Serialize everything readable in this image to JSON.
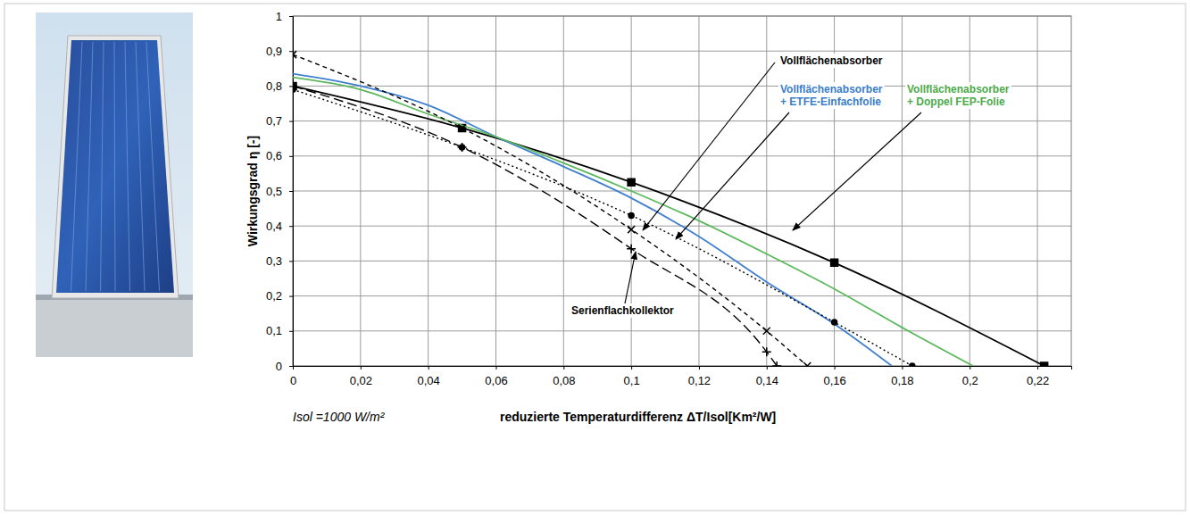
{
  "chart_data": {
    "type": "line",
    "y_label": "Wirkungsgrad η [-]",
    "x_label": "reduzierte Temperaturdifferenz ΔT/Isol[Km²/W]",
    "note": "Isol =1000 W/m²",
    "xlim": [
      0,
      0.23
    ],
    "ylim": [
      0,
      1
    ],
    "xticks": [
      0,
      {
        "value": 0.02,
        "label": "0,02"
      },
      {
        "value": 0.04,
        "label": "0,04"
      },
      {
        "value": 0.06,
        "label": "0,06"
      },
      {
        "value": 0.08,
        "label": "0,08"
      },
      {
        "value": 0.1,
        "label": "0,1"
      },
      {
        "value": 0.12,
        "label": "0,12"
      },
      {
        "value": 0.14,
        "label": "0,14"
      },
      {
        "value": 0.16,
        "label": "0,16"
      },
      {
        "value": 0.18,
        "label": "0,18"
      },
      {
        "value": 0.2,
        "label": "0,2"
      },
      {
        "value": 0.22,
        "label": "0,22"
      }
    ],
    "yticks": [
      0,
      {
        "value": 0.1,
        "label": "0,1"
      },
      {
        "value": 0.2,
        "label": "0,2"
      },
      {
        "value": 0.3,
        "label": "0,3"
      },
      {
        "value": 0.4,
        "label": "0,4"
      },
      {
        "value": 0.5,
        "label": "0,5"
      },
      {
        "value": 0.6,
        "label": "0,6"
      },
      {
        "value": 0.7,
        "label": "0,7"
      },
      {
        "value": 0.8,
        "label": "0,8"
      },
      {
        "value": 0.9,
        "label": "0,9"
      },
      1
    ],
    "grid": true,
    "series": [
      {
        "color": "#000000",
        "line_style": "solid",
        "marker": "square",
        "x": [
          0,
          0.05,
          0.1,
          0.16,
          0.222
        ],
        "values": [
          0.8,
          0.68,
          0.525,
          0.295,
          0
        ]
      },
      {
        "color": "#3f7fd0",
        "line_style": "solid",
        "marker": "none",
        "x": [
          0,
          0.02,
          0.04,
          0.06,
          0.08,
          0.1,
          0.12,
          0.14,
          0.16,
          0.177
        ],
        "values": [
          0.835,
          0.8,
          0.745,
          0.655,
          0.57,
          0.48,
          0.37,
          0.24,
          0.12,
          0
        ]
      },
      {
        "color": "#5cb85c",
        "line_style": "solid",
        "marker": "none",
        "x": [
          0,
          0.02,
          0.04,
          0.06,
          0.08,
          0.1,
          0.12,
          0.14,
          0.16,
          0.18,
          0.201
        ],
        "values": [
          0.825,
          0.79,
          0.72,
          0.655,
          0.58,
          0.5,
          0.415,
          0.32,
          0.22,
          0.11,
          0
        ]
      },
      {
        "color": "#000000",
        "line_style": "dashed",
        "marker": "x",
        "x": [
          0,
          0.05,
          0.1,
          0.14,
          0.152
        ],
        "values": [
          0.89,
          0.68,
          0.39,
          0.1,
          0
        ]
      },
      {
        "color": "#000000",
        "line_style": "dotted",
        "marker": "circle",
        "x": [
          0,
          0.05,
          0.1,
          0.16,
          0.183
        ],
        "values": [
          0.79,
          0.625,
          0.43,
          0.125,
          0
        ]
      },
      {
        "color": "#000000",
        "line_style": "longdash",
        "marker": "plus",
        "x": [
          0,
          0.05,
          0.1,
          0.14,
          0.143
        ],
        "values": [
          0.8,
          0.625,
          0.335,
          0.04,
          0
        ]
      }
    ],
    "annotations": [
      {
        "lines": [
          "Vollflächenabsorber"
        ],
        "color": "#000000"
      },
      {
        "lines": [
          "Vollflächenabsorber",
          "+ ETFE-Einfachfolie"
        ],
        "color": "#3a7dc9"
      },
      {
        "lines": [
          "Vollflächenabsorber",
          "+ Doppel FEP-Folie"
        ],
        "color": "#4caa4a"
      },
      {
        "lines": [
          "Serienflachkollektor"
        ],
        "color": "#000000"
      }
    ]
  }
}
